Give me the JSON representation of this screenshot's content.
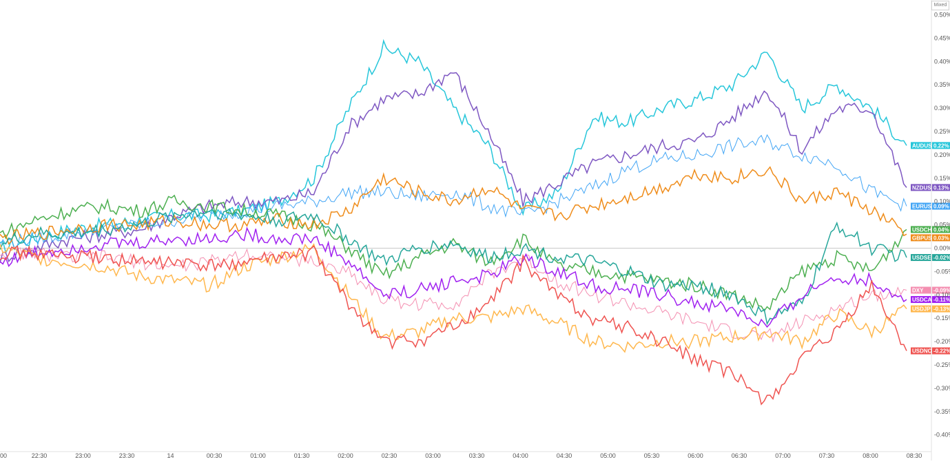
{
  "scale_button": "Mixed",
  "chart_data": {
    "type": "line",
    "title": "",
    "xlabel": "",
    "ylabel": "",
    "x_labels": [
      "22:30",
      "23:00",
      "23:30",
      "14",
      "00:30",
      "01:00",
      "01:30",
      "02:00",
      "02:30",
      "03:00",
      "03:30",
      "04:00",
      "04:30",
      "05:00",
      "05:30",
      "06:00",
      "06:30",
      "07:00",
      "07:30",
      "08:00",
      "08:30"
    ],
    "x_edge_label": "00",
    "y_ticks": [
      "0.50%",
      "0.45%",
      "0.40%",
      "0.35%",
      "0.30%",
      "0.25%",
      "0.20%",
      "0.15%",
      "0.10%",
      "0.05%",
      "0.00%",
      "-0.05%",
      "-0.10%",
      "-0.15%",
      "-0.20%",
      "-0.25%",
      "-0.30%",
      "-0.35%",
      "-0.40%"
    ],
    "ylim": [
      -0.43,
      0.52
    ],
    "grid": false,
    "legend": "right-edge badges",
    "series": [
      {
        "name": "AUDUSD",
        "color": "#26c6da",
        "last_label": "0.22%",
        "values": [
          0,
          0.02,
          0.04,
          0.05,
          0.06,
          0.07,
          0.07,
          0.08,
          0.1,
          0.15,
          0.3,
          0.43,
          0.4,
          0.3,
          0.22,
          0.08,
          0.12,
          0.28,
          0.27,
          0.3,
          0.32,
          0.35,
          0.42,
          0.3,
          0.35,
          0.3,
          0.22
        ]
      },
      {
        "name": "NZDUSD",
        "color": "#7e57c2",
        "last_label": "0.13%",
        "values": [
          -0.02,
          0,
          0.02,
          0.03,
          0.04,
          0.07,
          0.09,
          0.1,
          0.1,
          0.12,
          0.26,
          0.32,
          0.33,
          0.38,
          0.25,
          0.1,
          0.14,
          0.18,
          0.2,
          0.22,
          0.23,
          0.28,
          0.34,
          0.21,
          0.3,
          0.3,
          0.13
        ]
      },
      {
        "name": "EURUSD",
        "color": "#42a5f5",
        "last_label": "0.09%",
        "values": [
          0.01,
          0.02,
          0.03,
          0.04,
          0.05,
          0.06,
          0.07,
          0.08,
          0.09,
          0.1,
          0.12,
          0.12,
          0.11,
          0.12,
          0.09,
          0.07,
          0.1,
          0.13,
          0.17,
          0.19,
          0.2,
          0.22,
          0.23,
          0.2,
          0.18,
          0.12,
          0.09
        ]
      },
      {
        "name": "USDCHF",
        "color": "#4caf50",
        "last_label": "0.04%",
        "values": [
          0.03,
          0.06,
          0.08,
          0.09,
          0.08,
          0.1,
          0.09,
          0.08,
          0.07,
          0.05,
          0.0,
          -0.06,
          -0.02,
          0.01,
          -0.03,
          0.02,
          -0.04,
          -0.05,
          -0.06,
          -0.07,
          -0.08,
          -0.1,
          -0.13,
          -0.05,
          -0.02,
          -0.05,
          0.04
        ]
      },
      {
        "name": "GBPUSD",
        "color": "#ef8c1a",
        "last_label": "0.03%",
        "values": [
          0.02,
          0.03,
          0.04,
          0.05,
          0.05,
          0.06,
          0.05,
          0.05,
          0.06,
          0.05,
          0.08,
          0.15,
          0.12,
          0.1,
          0.13,
          0.08,
          0.07,
          0.09,
          0.11,
          0.13,
          0.16,
          0.15,
          0.17,
          0.1,
          0.12,
          0.08,
          0.03
        ]
      },
      {
        "name": "USDSEK",
        "color": "#26a69a",
        "last_label": "-0.02%",
        "values": [
          0.01,
          0.03,
          0.03,
          0.04,
          0.05,
          0.07,
          0.08,
          0.07,
          0.06,
          0.07,
          0.02,
          -0.03,
          0.0,
          0.01,
          -0.02,
          0.0,
          -0.02,
          -0.03,
          -0.05,
          -0.08,
          -0.08,
          -0.1,
          -0.15,
          -0.12,
          0.05,
          0.0,
          -0.02
        ]
      },
      {
        "name": "DXY",
        "color": "#f48fb1",
        "last_label": "-0.09%",
        "values": [
          -0.01,
          -0.01,
          -0.02,
          -0.02,
          -0.03,
          -0.04,
          -0.03,
          -0.01,
          -0.02,
          -0.03,
          -0.05,
          -0.11,
          -0.12,
          -0.12,
          -0.06,
          -0.02,
          -0.07,
          -0.1,
          -0.12,
          -0.14,
          -0.16,
          -0.18,
          -0.19,
          -0.16,
          -0.13,
          -0.1,
          -0.09
        ]
      },
      {
        "name": "USDCAD",
        "color": "#a020f0",
        "last_label": "-0.11%",
        "values": [
          -0.03,
          -0.01,
          0.0,
          0.01,
          0.01,
          0.02,
          0.02,
          0.03,
          0.02,
          0.02,
          -0.03,
          -0.1,
          -0.09,
          -0.07,
          -0.06,
          -0.02,
          -0.05,
          -0.08,
          -0.09,
          -0.1,
          -0.12,
          -0.13,
          -0.17,
          -0.1,
          -0.06,
          -0.07,
          -0.11
        ]
      },
      {
        "name": "USDJPY",
        "color": "#ffb74d",
        "last_label": "-0.13%",
        "values": [
          0,
          -0.02,
          -0.03,
          -0.04,
          -0.06,
          -0.07,
          -0.08,
          -0.04,
          -0.02,
          0.0,
          -0.1,
          -0.19,
          -0.18,
          -0.15,
          -0.15,
          -0.13,
          -0.16,
          -0.2,
          -0.21,
          -0.2,
          -0.2,
          -0.19,
          -0.18,
          -0.2,
          -0.14,
          -0.18,
          -0.13
        ]
      },
      {
        "name": "USDNOK",
        "color": "#ef5350",
        "last_label": "-0.22%",
        "values": [
          -0.01,
          -0.01,
          -0.02,
          -0.02,
          -0.03,
          -0.03,
          -0.04,
          -0.03,
          -0.02,
          -0.01,
          -0.12,
          -0.2,
          -0.2,
          -0.17,
          -0.12,
          -0.03,
          -0.1,
          -0.15,
          -0.17,
          -0.2,
          -0.24,
          -0.27,
          -0.33,
          -0.24,
          -0.18,
          -0.08,
          -0.22
        ]
      }
    ]
  }
}
